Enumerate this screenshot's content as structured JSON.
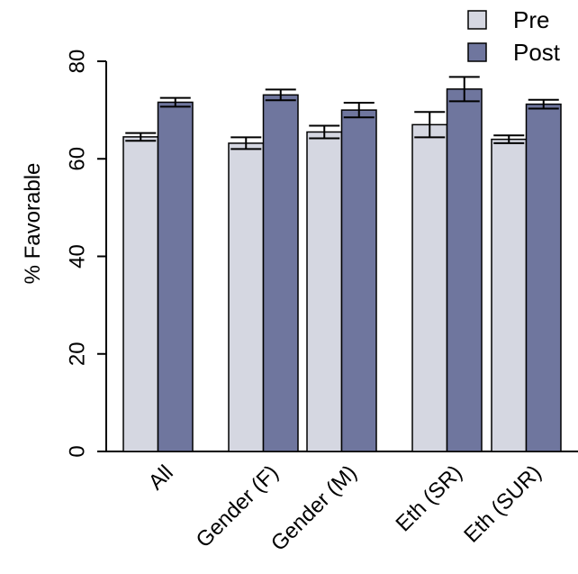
{
  "chart_data": {
    "type": "bar",
    "title": "",
    "xlabel": "",
    "ylabel": "% Favorable",
    "ylim": [
      0,
      80
    ],
    "yticks": [
      0,
      20,
      40,
      60,
      80
    ],
    "grid": false,
    "legend_position": "top-right",
    "categories": [
      "All",
      "Gender (F)",
      "Gender (M)",
      "Eth (SR)",
      "Eth (SUR)"
    ],
    "series": [
      {
        "name": "Pre",
        "color": "#d5d7e1",
        "values": [
          64.5,
          63.2,
          65.5,
          67.0,
          64.0
        ],
        "error": [
          0.8,
          1.2,
          1.3,
          2.6,
          0.8
        ]
      },
      {
        "name": "Post",
        "color": "#6f769e",
        "values": [
          71.6,
          73.1,
          70.0,
          74.3,
          71.2
        ],
        "error": [
          0.9,
          1.1,
          1.5,
          2.5,
          0.9
        ]
      }
    ]
  }
}
